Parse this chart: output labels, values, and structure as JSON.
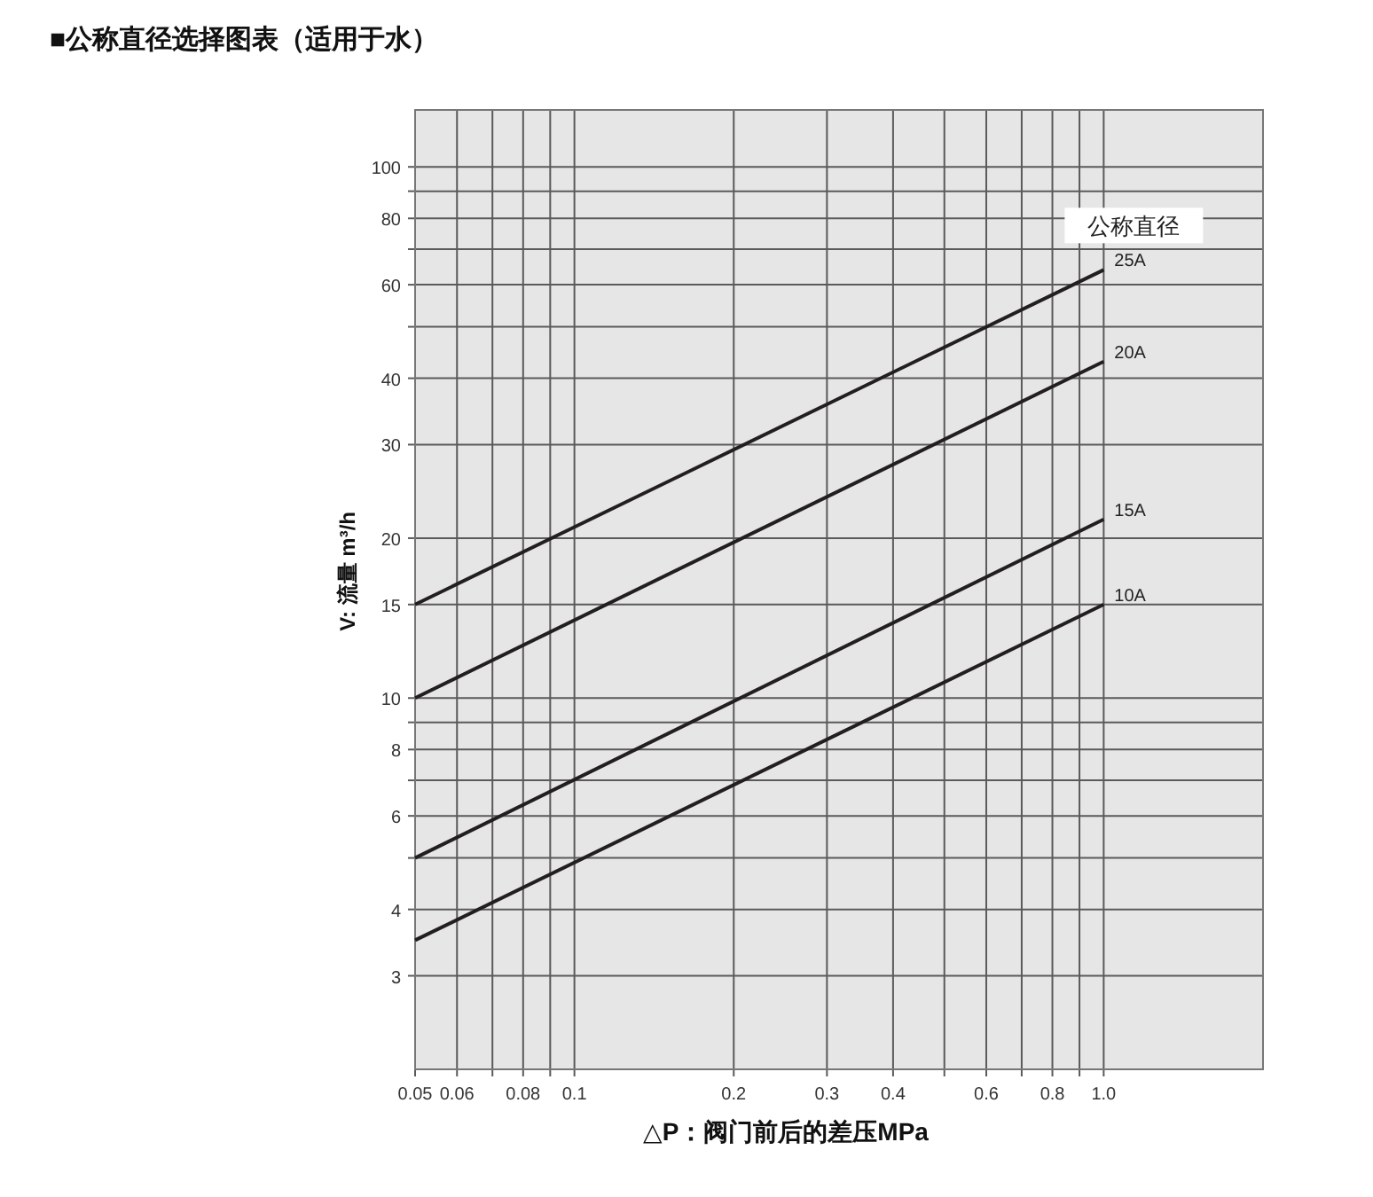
{
  "chart_data": {
    "type": "line",
    "title": "■公称直径选择图表（适用于水）",
    "xlabel": "△P：阀门前后的差压MPa",
    "ylabel": "V: 流量 m³/h",
    "legend_title": "公称直径",
    "log": "xy",
    "grid": true,
    "marker": "none",
    "line_style": "solid",
    "x": [
      0.05,
      1.0
    ],
    "series": [
      {
        "name": "25A",
        "color": "#231f20",
        "values": [
          15,
          64
        ]
      },
      {
        "name": "20A",
        "color": "#231f20",
        "values": [
          10,
          43
        ]
      },
      {
        "name": "15A",
        "color": "#231f20",
        "values": [
          5,
          21.7
        ]
      },
      {
        "name": "10A",
        "color": "#231f20",
        "values": [
          3.5,
          15
        ]
      }
    ],
    "xlim": [
      0.05,
      2.0
    ],
    "xticks": [
      0.05,
      0.06,
      {
        "value": 0.07,
        "label": null
      },
      0.08,
      {
        "value": 0.09,
        "label": null
      },
      0.1,
      0.2,
      0.3,
      0.4,
      {
        "value": 0.5,
        "label": null
      },
      0.6,
      {
        "value": 0.7,
        "label": null
      },
      0.8,
      {
        "value": 0.9,
        "label": null
      },
      {
        "value": 1.0,
        "label": "1.0"
      }
    ],
    "ylim": [
      2,
      128
    ],
    "yticks": [
      3,
      4,
      {
        "value": 5,
        "label": null
      },
      6,
      {
        "value": 7,
        "label": null
      },
      8,
      {
        "value": 9,
        "label": null
      },
      10,
      15,
      20,
      30,
      40,
      {
        "value": 50,
        "label": null
      },
      60,
      {
        "value": 70,
        "label": null
      },
      80,
      {
        "value": 90,
        "label": null
      },
      100
    ]
  }
}
